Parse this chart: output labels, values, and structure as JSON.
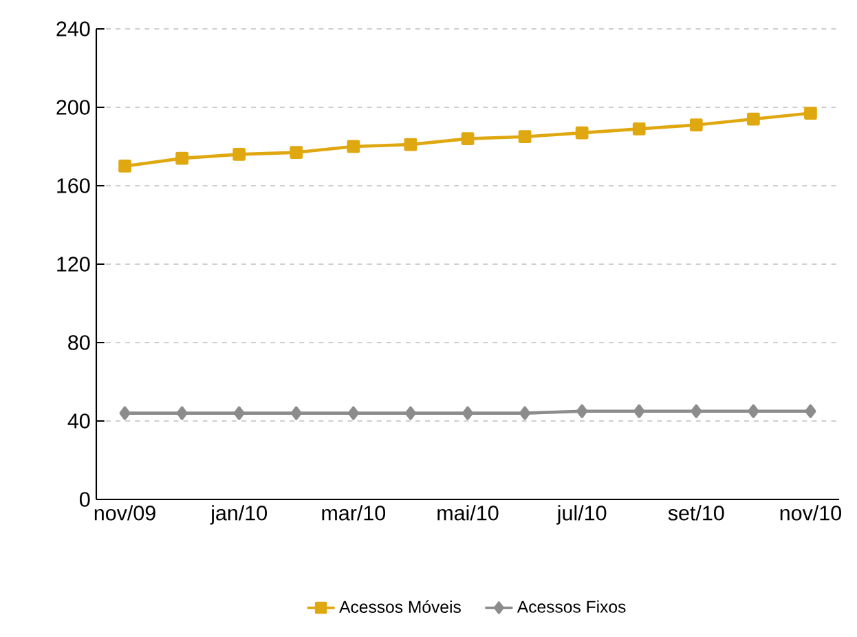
{
  "chart_data": {
    "type": "line",
    "categories": [
      "nov/09",
      null,
      "jan/10",
      null,
      "mar/10",
      null,
      "mai/10",
      null,
      "jul/10",
      null,
      "set/10",
      null,
      "nov/10"
    ],
    "series": [
      {
        "name": "Acessos Móveis",
        "color": "#e0a810",
        "marker": "square",
        "values": [
          170,
          174,
          176,
          177,
          180,
          181,
          184,
          185,
          187,
          189,
          191,
          194,
          197
        ]
      },
      {
        "name": "Acessos Fixos",
        "color": "#8c8c8c",
        "marker": "diamond",
        "values": [
          44,
          44,
          44,
          44,
          44,
          44,
          44,
          44,
          45,
          45,
          45,
          45,
          45
        ]
      }
    ],
    "ylim": [
      0,
      240
    ],
    "yticks": [
      0,
      40,
      80,
      120,
      160,
      200,
      240
    ],
    "grid": "y",
    "legend": "bottom"
  }
}
